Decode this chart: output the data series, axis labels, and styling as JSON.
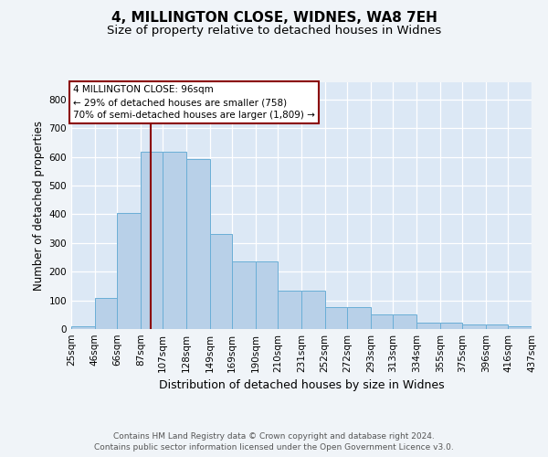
{
  "title1": "4, MILLINGTON CLOSE, WIDNES, WA8 7EH",
  "title2": "Size of property relative to detached houses in Widnes",
  "xlabel": "Distribution of detached houses by size in Widnes",
  "ylabel": "Number of detached properties",
  "footer1": "Contains HM Land Registry data © Crown copyright and database right 2024.",
  "footer2": "Contains public sector information licensed under the Open Government Licence v3.0.",
  "bin_labels": [
    "25sqm",
    "46sqm",
    "66sqm",
    "87sqm",
    "107sqm",
    "128sqm",
    "149sqm",
    "169sqm",
    "190sqm",
    "210sqm",
    "231sqm",
    "252sqm",
    "272sqm",
    "293sqm",
    "313sqm",
    "334sqm",
    "355sqm",
    "375sqm",
    "396sqm",
    "416sqm",
    "437sqm"
  ],
  "bin_edges": [
    25,
    46,
    66,
    87,
    107,
    128,
    149,
    169,
    190,
    210,
    231,
    252,
    272,
    293,
    313,
    334,
    355,
    375,
    396,
    416,
    437
  ],
  "bar_heights": [
    8,
    107,
    403,
    617,
    617,
    591,
    330,
    237,
    237,
    133,
    133,
    77,
    77,
    50,
    50,
    21,
    21,
    15,
    15,
    8
  ],
  "bar_color": "#b8d0e8",
  "bar_edge_color": "#6aaed6",
  "property_line_x": 96,
  "property_line_color": "#8b0000",
  "annotation_line1": "4 MILLINGTON CLOSE: 96sqm",
  "annotation_line2": "← 29% of detached houses are smaller (758)",
  "annotation_line3": "70% of semi-detached houses are larger (1,809) →",
  "annotation_box_edge": "#8b0000",
  "ylim": [
    0,
    860
  ],
  "yticks": [
    0,
    100,
    200,
    300,
    400,
    500,
    600,
    700,
    800
  ],
  "plot_bg_color": "#dce8f5",
  "grid_color": "#ffffff",
  "title1_fontsize": 11,
  "title2_fontsize": 9.5,
  "xlabel_fontsize": 9,
  "ylabel_fontsize": 8.5,
  "tick_fontsize": 7.5,
  "annot_fontsize": 7.5,
  "footer_fontsize": 6.5
}
